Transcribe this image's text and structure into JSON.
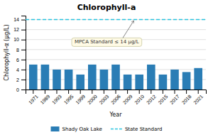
{
  "chart_data": {
    "type": "bar",
    "title": "Chlorophyll-a",
    "xlabel": "Year",
    "ylabel": "Chlorophyll-α (μg/L)",
    "categories": [
      "1971",
      "1989",
      "1993",
      "1995",
      "1999",
      "2000",
      "2003",
      "2006",
      "2009",
      "2010",
      "2012",
      "2015",
      "2017",
      "2018",
      "2021"
    ],
    "series": [
      {
        "name": "Shady Oak Lake",
        "type": "bar",
        "color": "#2a7db5",
        "values": [
          5.0,
          5.0,
          4.0,
          4.0,
          3.0,
          5.0,
          4.0,
          5.0,
          3.0,
          3.0,
          5.0,
          3.0,
          4.0,
          3.5,
          4.3
        ]
      },
      {
        "name": "State Standard",
        "type": "hline",
        "color": "#29c4e0",
        "line_style": "dashed",
        "value": 14
      }
    ],
    "annotations": [
      {
        "text": "MPCA Standard ≤ 14 μg/L"
      }
    ],
    "ylim": [
      0,
      14.8
    ],
    "yticks": [
      0,
      2,
      4,
      6,
      8,
      10,
      12,
      14
    ],
    "grid": true,
    "legend": "bottom"
  }
}
